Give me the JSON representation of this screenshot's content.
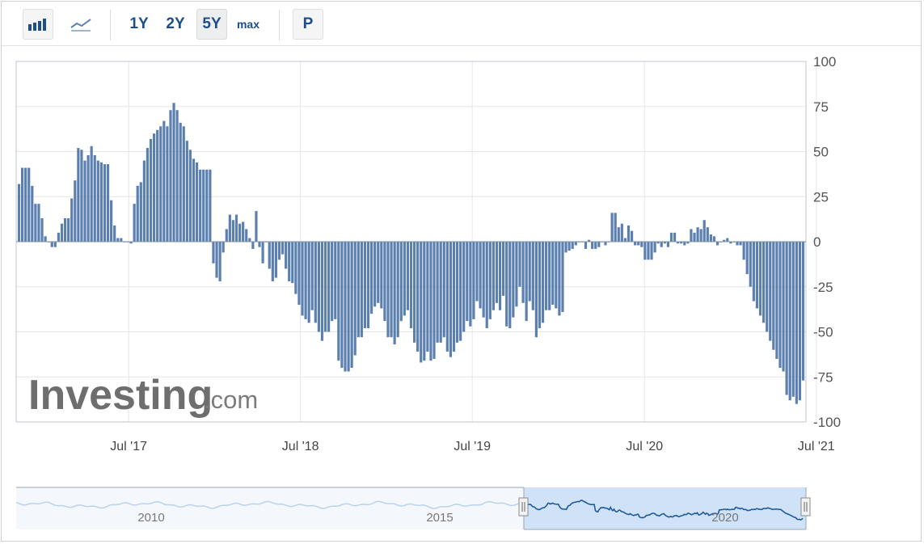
{
  "toolbar": {
    "bar_chart_icon": "bar-chart-icon",
    "line_chart_icon": "line-chart-icon",
    "ranges": [
      "1Y",
      "2Y",
      "5Y",
      "max"
    ],
    "active_range": "5Y",
    "p_label": "P"
  },
  "watermark": {
    "brand": "Investing",
    "suffix": ".com"
  },
  "navigator": {
    "labels": [
      "2010",
      "2015",
      "2020"
    ]
  },
  "colors": {
    "bar": "#5b7fae",
    "nav_fill": "#cfe2f7",
    "nav_line": "#1f5b9d",
    "nav_ghost": "#b9d3ee"
  },
  "chart_data": {
    "type": "bar",
    "title": "",
    "xlabel": "",
    "ylabel": "",
    "ylim": [
      -100,
      100
    ],
    "yticks": [
      100,
      75,
      50,
      25,
      0,
      -25,
      -50,
      -75,
      -100
    ],
    "xticks": [
      "Jul '17",
      "Jul '18",
      "Jul '19",
      "Jul '20",
      "Jul '21"
    ],
    "grid": true,
    "start": "2016-11-10",
    "interval_days": 7,
    "values": [
      32,
      41,
      41,
      41,
      31,
      21,
      21,
      13,
      3,
      0,
      -3,
      -3,
      5,
      10,
      13,
      13,
      24,
      34,
      52,
      51,
      45,
      48,
      53,
      48,
      45,
      44,
      43,
      43,
      23,
      9,
      2,
      2,
      0,
      0,
      -1,
      21,
      31,
      33,
      45,
      52,
      57,
      60,
      62,
      64,
      67,
      64,
      73,
      77,
      73,
      66,
      64,
      56,
      51,
      46,
      44,
      40,
      40,
      40,
      40,
      -12,
      -20,
      -22,
      -6,
      7,
      15,
      12,
      15,
      10,
      11,
      7,
      2,
      -4,
      17,
      -3,
      -12,
      0,
      -15,
      -22,
      -20,
      -10,
      -7,
      -15,
      -22,
      -23,
      -29,
      -35,
      -41,
      -43,
      -45,
      -38,
      -45,
      -50,
      -55,
      -50,
      -50,
      -44,
      -43,
      -66,
      -70,
      -72,
      -72,
      -70,
      -63,
      -53,
      -53,
      -48,
      -48,
      -40,
      -36,
      -34,
      -37,
      -44,
      -53,
      -53,
      -57,
      -53,
      -44,
      -41,
      -38,
      -48,
      -56,
      -61,
      -67,
      -66,
      -61,
      -66,
      -65,
      -56,
      -56,
      -53,
      -61,
      -64,
      -61,
      -56,
      -55,
      -50,
      -44,
      -47,
      -43,
      -33,
      -37,
      -42,
      -48,
      -43,
      -38,
      -34,
      -38,
      -30,
      -47,
      -48,
      -42,
      -36,
      -25,
      -34,
      -44,
      -33,
      -38,
      -53,
      -48,
      -45,
      -38,
      -38,
      -35,
      -37,
      -41,
      -39,
      -6,
      -5,
      -4,
      -2,
      0,
      0,
      -4,
      1,
      -4,
      -4,
      -3,
      0,
      -2,
      0,
      16,
      16,
      8,
      10,
      2,
      9,
      6,
      -2,
      -2,
      -3,
      -10,
      -10,
      -10,
      -6,
      -1,
      -3,
      -1,
      -3,
      5,
      5,
      -1,
      -1,
      -2,
      -1,
      7,
      5,
      8,
      7,
      12,
      8,
      4,
      3,
      -2,
      0,
      1,
      2,
      -1,
      0,
      -2,
      -2,
      -10,
      -18,
      -25,
      -33,
      -37,
      -41,
      -45,
      -50,
      -55,
      -60,
      -65,
      -70,
      -72,
      -85,
      -88,
      -86,
      -90,
      -88,
      -77
    ]
  }
}
